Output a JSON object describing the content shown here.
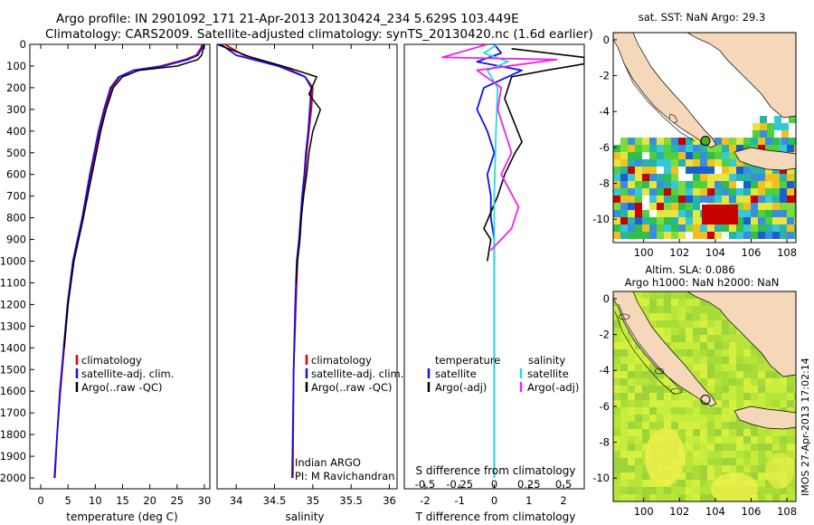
{
  "header": {
    "title_line1": "Argo profile: IN 2901092_171 21-Apr-2013 20130424_234 5.629S 103.449E",
    "title_line2": "Climatology: CARS2009. Satellite-adjusted climatology: synTS_20130420.nc (1.6d earlier)"
  },
  "colors": {
    "climatology": "#e00000",
    "satellite": "#1010ee",
    "argo": "#000000",
    "sal_satellite": "#22dddd",
    "sal_argo": "#ee22ee",
    "map_land": "#f5d7ba",
    "map_missing": "#ffffff"
  },
  "watermark": "IMOS 27-Apr-2013 17:02:14",
  "chart_data": [
    {
      "id": "temperature",
      "type": "line",
      "xlabel": "temperature (deg C)",
      "xlim": [
        -2,
        31
      ],
      "ylim": [
        0,
        2050
      ],
      "y_inverted": true,
      "xticks": [
        0,
        5,
        10,
        15,
        20,
        25,
        30
      ],
      "yticks": [
        0,
        100,
        200,
        300,
        400,
        500,
        600,
        700,
        800,
        900,
        1000,
        1100,
        1200,
        1300,
        1400,
        1500,
        1600,
        1700,
        1800,
        1900,
        2000
      ],
      "legend": [
        "climatology",
        "satellite-adj. clim.",
        "Argo(..raw -QC)"
      ],
      "series": [
        {
          "name": "climatology",
          "color_key": "climatology",
          "x": [
            29.6,
            29.3,
            28.5,
            26.5,
            22.0,
            17.0,
            14.5,
            13.0,
            11.8,
            10.8,
            10.0,
            9.2,
            8.4,
            7.8,
            6.0,
            5.0,
            4.3,
            3.6,
            3.0,
            2.6
          ],
          "y": [
            0,
            20,
            50,
            70,
            100,
            120,
            150,
            200,
            300,
            400,
            500,
            600,
            700,
            800,
            1000,
            1200,
            1400,
            1600,
            1800,
            2000
          ]
        },
        {
          "name": "satellite-adj. clim.",
          "color_key": "satellite",
          "x": [
            29.8,
            29.5,
            28.8,
            27.0,
            22.5,
            17.0,
            14.3,
            12.8,
            11.6,
            10.6,
            9.8,
            9.0,
            8.3,
            7.6,
            5.9,
            4.9,
            4.2,
            3.5,
            3.0,
            2.5
          ],
          "y": [
            0,
            20,
            50,
            70,
            100,
            120,
            150,
            200,
            300,
            400,
            500,
            600,
            700,
            800,
            1000,
            1200,
            1400,
            1600,
            1800,
            2000
          ]
        },
        {
          "name": "Argo(..raw -QC)",
          "color_key": "argo",
          "x": [
            30.0,
            29.8,
            29.5,
            28.8,
            25.0,
            18.0,
            15.0,
            13.3,
            12.0,
            11.0,
            10.2,
            9.4,
            8.6,
            7.8,
            6.1,
            5.0,
            4.3
          ],
          "y": [
            0,
            20,
            50,
            70,
            100,
            120,
            150,
            200,
            300,
            400,
            500,
            600,
            700,
            800,
            1000,
            1200,
            1400
          ]
        }
      ]
    },
    {
      "id": "salinity",
      "type": "line",
      "xlabel": "salinity",
      "xlim": [
        33.75,
        36.1
      ],
      "ylim": [
        0,
        2050
      ],
      "y_inverted": true,
      "xticks": [
        34,
        34.5,
        35,
        35.5,
        36
      ],
      "legend": [
        "climatology",
        "satellite-adj. clim.",
        "Argo(..raw -QC)"
      ],
      "annotation": [
        "Indian ARGO",
        "PI: M Ravichandran"
      ],
      "series": [
        {
          "name": "climatology",
          "color_key": "climatology",
          "x": [
            33.85,
            34.1,
            34.6,
            34.9,
            35.0,
            34.98,
            34.95,
            34.92,
            34.9,
            34.87,
            34.85,
            34.83,
            34.8,
            34.78,
            34.75,
            34.74
          ],
          "y": [
            0,
            50,
            100,
            150,
            200,
            300,
            400,
            500,
            600,
            700,
            800,
            900,
            1000,
            1200,
            1500,
            2000
          ]
        },
        {
          "name": "satellite-adj. clim.",
          "color_key": "satellite",
          "x": [
            33.8,
            34.0,
            34.55,
            34.9,
            34.98,
            34.96,
            34.94,
            34.91,
            34.89,
            34.86,
            34.84,
            34.82,
            34.79,
            34.77,
            34.75,
            34.73
          ],
          "y": [
            0,
            50,
            100,
            150,
            200,
            300,
            400,
            500,
            600,
            700,
            800,
            900,
            1000,
            1200,
            1500,
            2000
          ]
        },
        {
          "name": "Argo(..raw -QC)",
          "color_key": "argo",
          "x": [
            33.75,
            34.2,
            34.7,
            35.05,
            34.95,
            35.1,
            35.0,
            34.95,
            34.92,
            34.88,
            34.85,
            34.83,
            34.8,
            34.78
          ],
          "y": [
            0,
            60,
            110,
            150,
            230,
            300,
            400,
            500,
            600,
            700,
            800,
            900,
            1000,
            1100
          ]
        }
      ]
    },
    {
      "id": "differences",
      "type": "line",
      "xlabel_top": "S difference from climatology",
      "xlabel": "T difference from climatology",
      "xlim": [
        -2.6,
        2.6
      ],
      "ylim": [
        0,
        2050
      ],
      "y_inverted": true,
      "xticks": [
        -2,
        -1,
        0,
        1,
        2
      ],
      "xticks_top": [
        {
          "label": "-0.5",
          "t": -2
        },
        {
          "label": "-0.25",
          "t": -1
        },
        {
          "label": "0",
          "t": 0
        },
        {
          "label": "0.25",
          "t": 1
        },
        {
          "label": "0.5",
          "t": 2
        }
      ],
      "legend_left_title": "temperature",
      "legend_right_title": "salinity",
      "legend_left": [
        "satellite",
        "Argo(-adj)"
      ],
      "legend_right": [
        "satellite",
        "Argo(-adj)"
      ],
      "series": [
        {
          "name": "temperature satellite",
          "color_key": "satellite",
          "x": [
            0,
            0.2,
            -0.5,
            0.8,
            -0.3,
            -0.5,
            -0.2,
            0.0,
            -0.2,
            -0.1,
            -0.1,
            0,
            0,
            0,
            0
          ],
          "y": [
            0,
            40,
            80,
            120,
            200,
            300,
            400,
            500,
            600,
            700,
            800,
            900,
            1200,
            1600,
            2000
          ]
        },
        {
          "name": "temperature Argo(-adj)",
          "color_key": "argo",
          "x": [
            0.5,
            2.6,
            2.6,
            1.5,
            0.5,
            0.3,
            0.8,
            0.6,
            0.3,
            0.1,
            -0.3,
            -0.1,
            -0.2
          ],
          "y": [
            20,
            60,
            90,
            120,
            150,
            250,
            450,
            500,
            600,
            700,
            850,
            900,
            1000
          ]
        },
        {
          "name": "salinity satellite",
          "color_key": "sal_satellite",
          "x": [
            0.1,
            -0.3,
            0.4,
            -0.2,
            0.1,
            0.05,
            0.0,
            0.0,
            0.0
          ],
          "y": [
            0,
            40,
            80,
            120,
            200,
            400,
            700,
            1200,
            2000
          ]
        },
        {
          "name": "salinity Argo(-adj)",
          "color_key": "sal_argo",
          "x": [
            -0.2,
            -1.5,
            1.8,
            -0.5,
            0.2,
            0.1,
            0.3,
            0.5,
            0.2,
            0.7,
            0.5,
            -0.1
          ],
          "y": [
            0,
            60,
            70,
            120,
            200,
            300,
            400,
            500,
            600,
            750,
            850,
            950
          ]
        }
      ]
    },
    {
      "id": "sst_map",
      "type": "heatmap",
      "title": "sat. SST: NaN Argo: 29.3",
      "xlim": [
        98.3,
        108.5
      ],
      "ylim": [
        -11.3,
        0.4
      ],
      "xticks": [
        100,
        102,
        104,
        106,
        108
      ],
      "yticks": [
        0,
        -2,
        -4,
        -6,
        -8,
        -10
      ],
      "argo_position": {
        "lon": 103.449,
        "lat": -5.629
      }
    },
    {
      "id": "sla_map",
      "type": "heatmap",
      "title_line1": "Altim. SLA: 0.086",
      "title_line2": "Argo h1000: NaN h2000: NaN",
      "xlim": [
        98.3,
        108.5
      ],
      "ylim": [
        -11.3,
        0.4
      ],
      "xticks": [
        100,
        102,
        104,
        106,
        108
      ],
      "yticks": [
        0,
        -2,
        -4,
        -6,
        -8,
        -10
      ],
      "argo_position": {
        "lon": 103.449,
        "lat": -5.629
      }
    }
  ]
}
